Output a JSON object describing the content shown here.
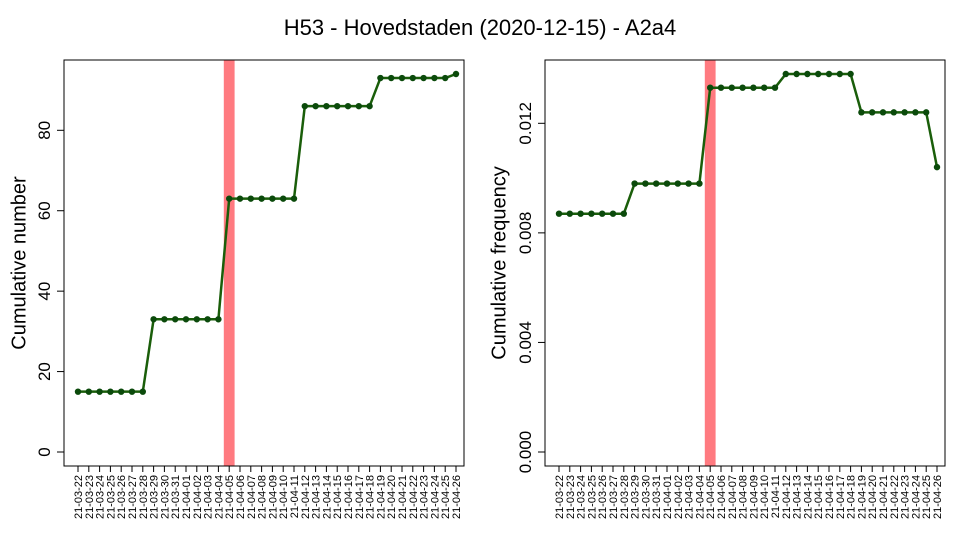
{
  "title": "H53 - Hovedstaden (2020-12-15) - A2a4",
  "colors": {
    "line": "#1a5e0a",
    "point": "#0b4a0b",
    "highlight": "#ff7a80",
    "axis": "#000000"
  },
  "chart_data": [
    {
      "type": "line",
      "ylabel": "Cumulative number",
      "xlabel": "",
      "ylim": [
        0,
        94
      ],
      "yticks": [
        0,
        20,
        40,
        60,
        80
      ],
      "ytick_labels": [
        "0",
        "20",
        "40",
        "60",
        "80"
      ],
      "highlight_category": "21-04-05",
      "categories": [
        "21-03-22",
        "21-03-23",
        "21-03-24",
        "21-03-25",
        "21-03-26",
        "21-03-27",
        "21-03-28",
        "21-03-29",
        "21-03-30",
        "21-03-31",
        "21-04-01",
        "21-04-02",
        "21-04-03",
        "21-04-04",
        "21-04-05",
        "21-04-06",
        "21-04-07",
        "21-04-08",
        "21-04-09",
        "21-04-10",
        "21-04-11",
        "21-04-12",
        "21-04-13",
        "21-04-14",
        "21-04-15",
        "21-04-16",
        "21-04-17",
        "21-04-18",
        "21-04-19",
        "21-04-20",
        "21-04-21",
        "21-04-22",
        "21-04-23",
        "21-04-24",
        "21-04-25",
        "21-04-26"
      ],
      "values": [
        15,
        15,
        15,
        15,
        15,
        15,
        15,
        33,
        33,
        33,
        33,
        33,
        33,
        33,
        63,
        63,
        63,
        63,
        63,
        63,
        63,
        86,
        86,
        86,
        86,
        86,
        86,
        86,
        93,
        93,
        93,
        93,
        93,
        93,
        93,
        94
      ]
    },
    {
      "type": "line",
      "ylabel": "Cumulative frequency",
      "xlabel": "",
      "ylim": [
        0,
        0.0138
      ],
      "yticks": [
        0,
        0.004,
        0.008,
        0.012
      ],
      "ytick_labels": [
        "0.000",
        "0.004",
        "0.008",
        "0.012"
      ],
      "highlight_category": "21-04-05",
      "categories": [
        "21-03-22",
        "21-03-23",
        "21-03-24",
        "21-03-25",
        "21-03-26",
        "21-03-27",
        "21-03-28",
        "21-03-29",
        "21-03-30",
        "21-03-31",
        "21-04-01",
        "21-04-02",
        "21-04-03",
        "21-04-04",
        "21-04-05",
        "21-04-06",
        "21-04-07",
        "21-04-08",
        "21-04-09",
        "21-04-10",
        "21-04-11",
        "21-04-12",
        "21-04-13",
        "21-04-14",
        "21-04-15",
        "21-04-16",
        "21-04-17",
        "21-04-18",
        "21-04-19",
        "21-04-20",
        "21-04-21",
        "21-04-22",
        "21-04-23",
        "21-04-24",
        "21-04-25",
        "21-04-26"
      ],
      "values": [
        0.0087,
        0.0087,
        0.0087,
        0.0087,
        0.0087,
        0.0087,
        0.0087,
        0.0098,
        0.0098,
        0.0098,
        0.0098,
        0.0098,
        0.0098,
        0.0098,
        0.0133,
        0.0133,
        0.0133,
        0.0133,
        0.0133,
        0.0133,
        0.0133,
        0.0138,
        0.0138,
        0.0138,
        0.0138,
        0.0138,
        0.0138,
        0.0138,
        0.0124,
        0.0124,
        0.0124,
        0.0124,
        0.0124,
        0.0124,
        0.0124,
        0.0104
      ]
    }
  ]
}
